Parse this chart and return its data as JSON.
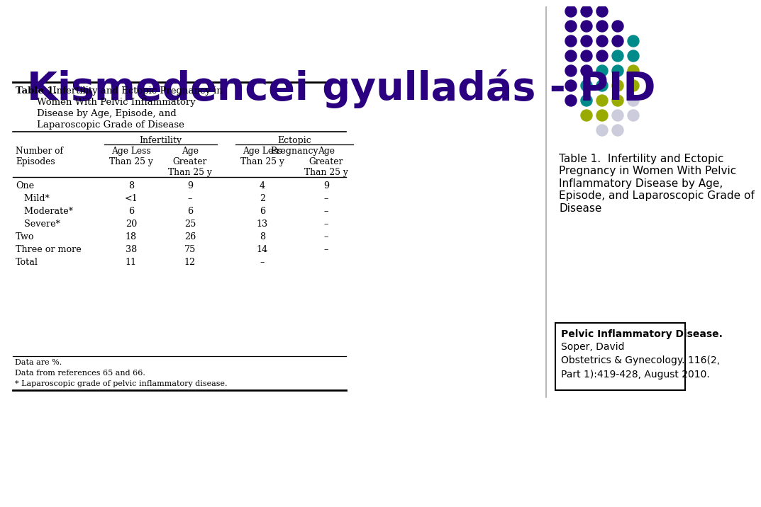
{
  "title": "Kismedencei gyulladás - PID",
  "title_color": "#2B0080",
  "title_fontsize": 40,
  "background_color": "#ffffff",
  "right_text": "Table 1.  Infertility and Ectopic\nPregnancy in Women With Pelvic\nInflammatory Disease by Age,\nEpisode, and Laparoscopic Grade of\nDisease",
  "citation_bold": "Pelvic Inflammatory Disease.",
  "citation_rest": "Soper, David\nObstetrics & Gynecology. 116(2,\nPart 1):419-428, August 2010.",
  "rows": [
    [
      "One",
      "8",
      "9",
      "4",
      "9"
    ],
    [
      "   Mild*",
      "<1",
      "–",
      "2",
      "–"
    ],
    [
      "   Moderate*",
      "6",
      "6",
      "6",
      "–"
    ],
    [
      "   Severe*",
      "20",
      "25",
      "13",
      "–"
    ],
    [
      "Two",
      "18",
      "26",
      "8",
      "–"
    ],
    [
      "Three or more",
      "38",
      "75",
      "14",
      "–"
    ],
    [
      "Total",
      "11",
      "12",
      "–",
      ""
    ]
  ],
  "footnotes": "Data are %.\nData from references 65 and 66.\n* Laparoscopic grade of pelvic inflammatory disease.",
  "dot_grid": [
    [
      "#2B0080",
      "#2B0080",
      "#2B0080"
    ],
    [
      "#2B0080",
      "#2B0080",
      "#2B0080",
      "#2B0080"
    ],
    [
      "#2B0080",
      "#2B0080",
      "#2B0080",
      "#2B0080",
      "#008b8b"
    ],
    [
      "#2B0080",
      "#2B0080",
      "#2B0080",
      "#008b8b",
      "#008b8b"
    ],
    [
      "#2B0080",
      "#2B0080",
      "#008b8b",
      "#008b8b",
      "#9aab00"
    ],
    [
      "#2B0080",
      "#008b8b",
      "#008b8b",
      "#9aab00",
      "#9aab00"
    ],
    [
      "#2B0080",
      "#008b8b",
      "#9aab00",
      "#9aab00",
      "#ccccdd"
    ],
    [
      "#9aab00",
      "#9aab00",
      "#ccccdd",
      "#ccccdd"
    ],
    [
      "#ccccdd",
      "#ccccdd"
    ]
  ]
}
